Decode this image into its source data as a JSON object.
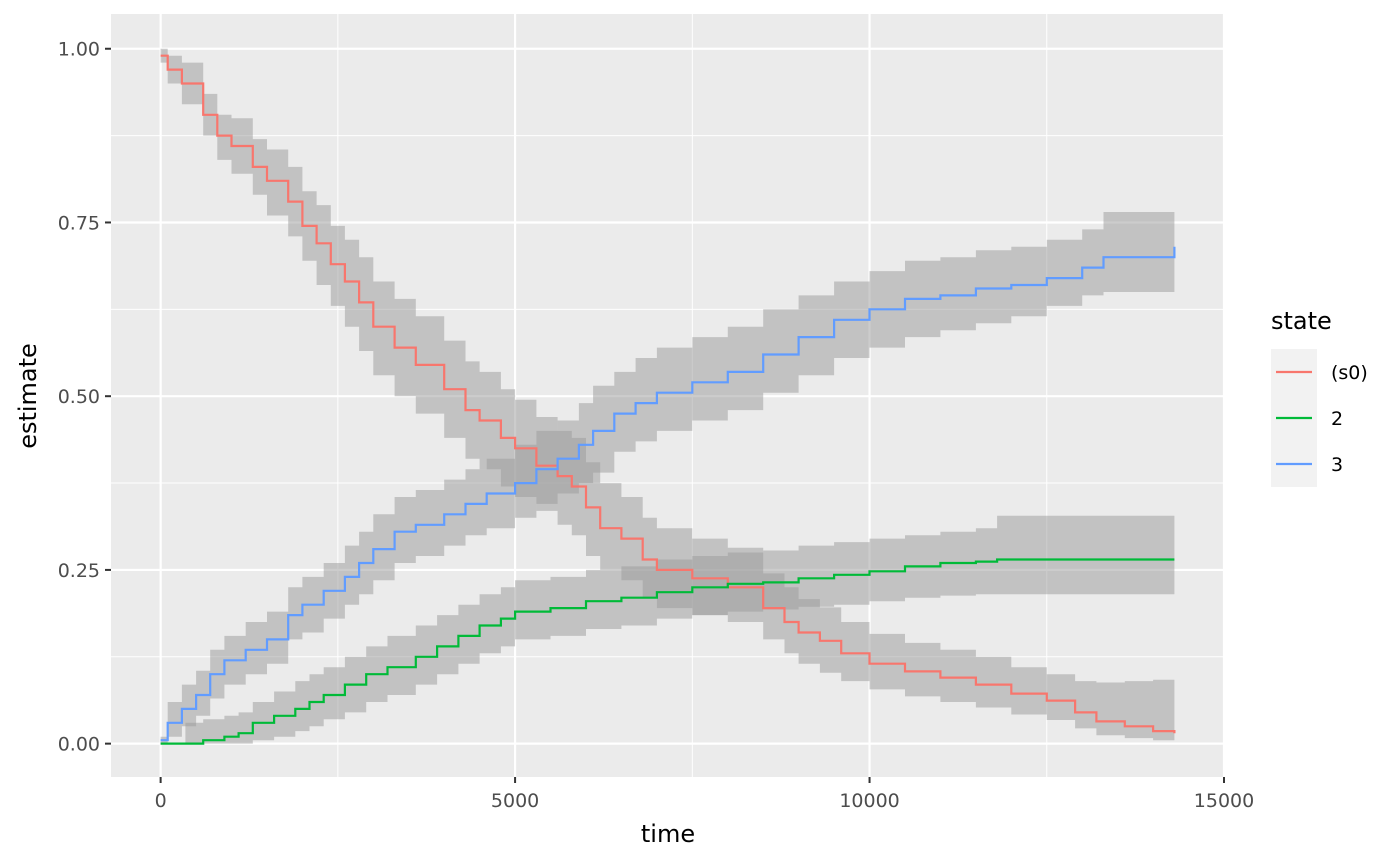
{
  "chart_data": {
    "type": "line",
    "title": "",
    "xlabel": "time",
    "ylabel": "estimate",
    "xlim": [
      -700,
      15000
    ],
    "ylim": [
      -0.048,
      1.05
    ],
    "x_ticks": [
      0,
      5000,
      10000,
      15000
    ],
    "x_tick_labels": [
      "0",
      "5000",
      "10000",
      "15000"
    ],
    "y_ticks": [
      0,
      0.25,
      0.5,
      0.75,
      1
    ],
    "y_tick_labels": [
      "0.00",
      "0.25",
      "0.50",
      "0.75",
      "1.00"
    ],
    "grid": true,
    "legend": {
      "title": "state",
      "position": "right"
    },
    "panel_color": "#EBEBEB",
    "ribbon_color": "#999999",
    "series": [
      {
        "name": "(s0)",
        "color": "#F8766D",
        "x": [
          0,
          100,
          300,
          600,
          800,
          1000,
          1300,
          1500,
          1800,
          2000,
          2200,
          2400,
          2600,
          2800,
          3000,
          3300,
          3600,
          4000,
          4300,
          4500,
          4800,
          5000,
          5300,
          5600,
          5800,
          6000,
          6200,
          6500,
          6800,
          7000,
          7500,
          8000,
          8500,
          8800,
          9000,
          9300,
          9600,
          10000,
          10500,
          11000,
          11500,
          12000,
          12500,
          12900,
          13200,
          13600,
          14000,
          14300
        ],
        "y": [
          0.99,
          0.97,
          0.95,
          0.905,
          0.875,
          0.86,
          0.83,
          0.81,
          0.78,
          0.745,
          0.72,
          0.69,
          0.665,
          0.635,
          0.6,
          0.57,
          0.545,
          0.51,
          0.48,
          0.465,
          0.44,
          0.425,
          0.4,
          0.385,
          0.37,
          0.34,
          0.31,
          0.295,
          0.265,
          0.25,
          0.238,
          0.225,
          0.195,
          0.175,
          0.16,
          0.148,
          0.13,
          0.115,
          0.104,
          0.095,
          0.085,
          0.072,
          0.062,
          0.045,
          0.032,
          0.025,
          0.018,
          0.015
        ],
        "lower": [
          0.98,
          0.95,
          0.92,
          0.875,
          0.84,
          0.82,
          0.79,
          0.76,
          0.73,
          0.695,
          0.66,
          0.63,
          0.6,
          0.565,
          0.53,
          0.5,
          0.475,
          0.44,
          0.41,
          0.395,
          0.37,
          0.355,
          0.335,
          0.315,
          0.3,
          0.27,
          0.25,
          0.235,
          0.21,
          0.195,
          0.185,
          0.175,
          0.15,
          0.13,
          0.115,
          0.102,
          0.09,
          0.078,
          0.068,
          0.06,
          0.052,
          0.042,
          0.034,
          0.022,
          0.012,
          0.008,
          0.005,
          0.004
        ],
        "upper": [
          1.0,
          0.99,
          0.98,
          0.935,
          0.905,
          0.9,
          0.87,
          0.855,
          0.83,
          0.795,
          0.775,
          0.745,
          0.725,
          0.7,
          0.665,
          0.64,
          0.615,
          0.58,
          0.55,
          0.535,
          0.51,
          0.495,
          0.47,
          0.45,
          0.44,
          0.405,
          0.375,
          0.355,
          0.325,
          0.31,
          0.295,
          0.282,
          0.245,
          0.225,
          0.208,
          0.196,
          0.175,
          0.158,
          0.145,
          0.135,
          0.125,
          0.11,
          0.1,
          0.09,
          0.088,
          0.09,
          0.092,
          0.092
        ]
      },
      {
        "name": "2",
        "color": "#00BA38",
        "x": [
          0,
          350,
          600,
          900,
          1100,
          1300,
          1600,
          1900,
          2100,
          2300,
          2600,
          2900,
          3200,
          3600,
          3900,
          4200,
          4500,
          4800,
          5000,
          5500,
          6000,
          6500,
          7000,
          7500,
          8000,
          8500,
          9000,
          9500,
          10000,
          10500,
          11000,
          11500,
          11800,
          12500,
          13000,
          14300
        ],
        "y": [
          0.0,
          0.0,
          0.005,
          0.01,
          0.015,
          0.03,
          0.04,
          0.05,
          0.06,
          0.07,
          0.085,
          0.1,
          0.11,
          0.125,
          0.14,
          0.155,
          0.17,
          0.18,
          0.19,
          0.195,
          0.205,
          0.21,
          0.218,
          0.225,
          0.23,
          0.232,
          0.238,
          0.243,
          0.248,
          0.255,
          0.26,
          0.262,
          0.265,
          0.265,
          0.265,
          0.265
        ],
        "lower": [
          0.0,
          0.0,
          0.0,
          0.0,
          0.0,
          0.005,
          0.01,
          0.018,
          0.025,
          0.035,
          0.045,
          0.06,
          0.07,
          0.085,
          0.1,
          0.115,
          0.13,
          0.14,
          0.15,
          0.155,
          0.165,
          0.17,
          0.18,
          0.185,
          0.19,
          0.193,
          0.197,
          0.2,
          0.205,
          0.21,
          0.213,
          0.215,
          0.215,
          0.215,
          0.215,
          0.215
        ],
        "upper": [
          0.0,
          0.03,
          0.035,
          0.04,
          0.045,
          0.06,
          0.075,
          0.09,
          0.1,
          0.11,
          0.125,
          0.14,
          0.155,
          0.17,
          0.185,
          0.2,
          0.215,
          0.225,
          0.235,
          0.24,
          0.25,
          0.255,
          0.265,
          0.27,
          0.275,
          0.278,
          0.285,
          0.29,
          0.295,
          0.3,
          0.305,
          0.31,
          0.328,
          0.328,
          0.328,
          0.328
        ]
      },
      {
        "name": "3",
        "color": "#619CFF",
        "x": [
          0,
          100,
          300,
          500,
          700,
          900,
          1200,
          1500,
          1800,
          2000,
          2300,
          2600,
          2800,
          3000,
          3300,
          3600,
          4000,
          4300,
          4600,
          5000,
          5300,
          5600,
          5900,
          6100,
          6400,
          6700,
          7000,
          7500,
          8000,
          8500,
          9000,
          9500,
          10000,
          10500,
          11000,
          11500,
          12000,
          12500,
          13000,
          13300,
          14300
        ],
        "y": [
          0.005,
          0.03,
          0.05,
          0.07,
          0.1,
          0.12,
          0.135,
          0.15,
          0.185,
          0.2,
          0.22,
          0.24,
          0.26,
          0.28,
          0.305,
          0.315,
          0.33,
          0.345,
          0.36,
          0.375,
          0.395,
          0.41,
          0.43,
          0.45,
          0.475,
          0.49,
          0.505,
          0.52,
          0.535,
          0.56,
          0.585,
          0.61,
          0.625,
          0.64,
          0.645,
          0.655,
          0.66,
          0.67,
          0.685,
          0.7,
          0.715
        ],
        "lower": [
          0.0,
          0.01,
          0.025,
          0.04,
          0.065,
          0.085,
          0.1,
          0.115,
          0.15,
          0.16,
          0.18,
          0.2,
          0.215,
          0.235,
          0.26,
          0.27,
          0.285,
          0.3,
          0.31,
          0.325,
          0.345,
          0.36,
          0.375,
          0.39,
          0.42,
          0.435,
          0.45,
          0.465,
          0.48,
          0.505,
          0.53,
          0.555,
          0.57,
          0.585,
          0.595,
          0.605,
          0.615,
          0.63,
          0.645,
          0.65,
          0.66
        ],
        "upper": [
          0.01,
          0.06,
          0.085,
          0.105,
          0.135,
          0.155,
          0.175,
          0.19,
          0.225,
          0.24,
          0.26,
          0.285,
          0.305,
          0.33,
          0.355,
          0.365,
          0.38,
          0.395,
          0.41,
          0.43,
          0.45,
          0.465,
          0.49,
          0.515,
          0.535,
          0.555,
          0.57,
          0.585,
          0.6,
          0.625,
          0.645,
          0.665,
          0.68,
          0.695,
          0.7,
          0.71,
          0.715,
          0.725,
          0.74,
          0.765,
          0.78
        ]
      }
    ]
  }
}
